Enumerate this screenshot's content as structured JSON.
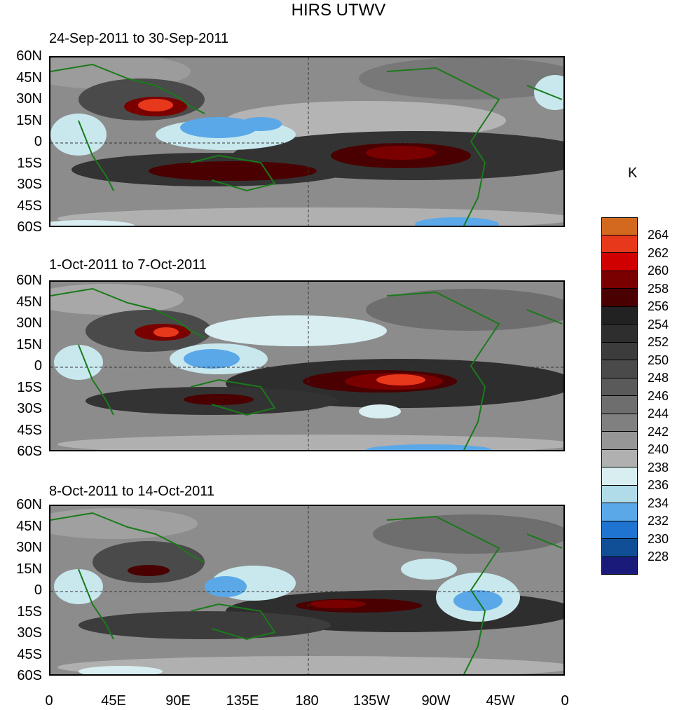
{
  "title": "HIRS UTWV",
  "unit": "K",
  "panels": [
    {
      "label": "24-Sep-2011 to 30-Sep-2011"
    },
    {
      "label": "1-Oct-2011 to 7-Oct-2011"
    },
    {
      "label": "8-Oct-2011 to 14-Oct-2011"
    }
  ],
  "lat_labels": [
    "60N",
    "45N",
    "30N",
    "15N",
    "0",
    "15S",
    "30S",
    "45S",
    "60S"
  ],
  "lon_labels": [
    "0",
    "45E",
    "90E",
    "135E",
    "180",
    "135W",
    "90W",
    "45W",
    "0"
  ],
  "colorbar": {
    "labels": [
      "264",
      "262",
      "260",
      "258",
      "256",
      "254",
      "252",
      "250",
      "248",
      "246",
      "244",
      "242",
      "240",
      "238",
      "236",
      "234",
      "232",
      "230",
      "228"
    ],
    "colors": [
      "#d2691e",
      "#e8381c",
      "#d00000",
      "#7a0000",
      "#4a0000",
      "#222222",
      "#2e2e2e",
      "#3c3c3c",
      "#4a4a4a",
      "#5a5a5a",
      "#6e6e6e",
      "#808080",
      "#969696",
      "#b0b0b0",
      "#d8eef0",
      "#b0dcea",
      "#5aa8e8",
      "#1e74d0",
      "#104e96",
      "#1a1a7a"
    ]
  }
}
